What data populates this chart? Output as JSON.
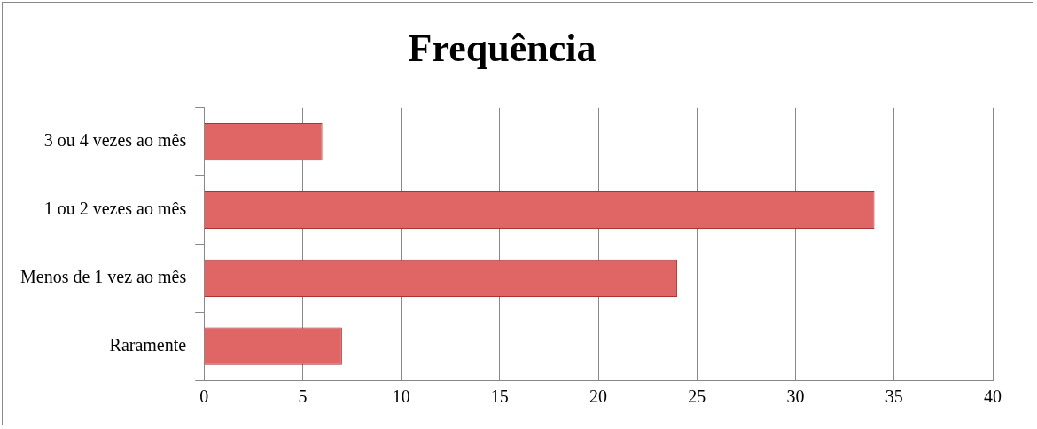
{
  "chart_data": {
    "type": "bar",
    "orientation": "horizontal",
    "title": "Frequência",
    "categories": [
      "3 ou 4 vezes ao mês",
      "1 ou 2 vezes ao mês",
      "Menos de 1 vez ao mês",
      "Raramente"
    ],
    "values": [
      6,
      34,
      24,
      7
    ],
    "color": "#e06666",
    "xlim": [
      0,
      40
    ],
    "xticks": [
      0,
      5,
      10,
      15,
      20,
      25,
      30,
      35,
      40
    ],
    "grid": "x"
  }
}
